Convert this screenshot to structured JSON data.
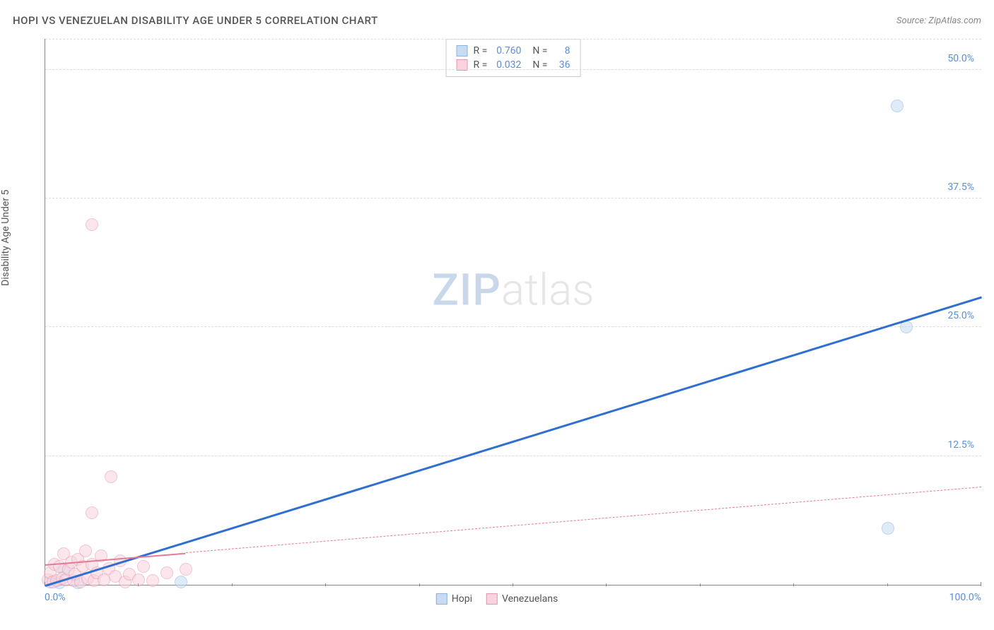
{
  "header": {
    "title": "HOPI VS VENEZUELAN DISABILITY AGE UNDER 5 CORRELATION CHART",
    "source": "Source: ZipAtlas.com"
  },
  "ylabel": "Disability Age Under 5",
  "watermark": {
    "zip": "ZIP",
    "atlas": "atlas"
  },
  "colors": {
    "series1_fill": "#c7dbf3",
    "series1_stroke": "#8ab2e2",
    "series2_fill": "#f9d3de",
    "series2_stroke": "#e796ae",
    "trend1": "#2f6fd0",
    "trend2": "#e57a95",
    "tick_text": "#5b8fd6",
    "grid": "#dddddd",
    "axis": "#888888"
  },
  "chart": {
    "type": "scatter",
    "xlim": [
      0,
      100
    ],
    "ylim": [
      0,
      53
    ],
    "yticks": [
      {
        "v": 12.5,
        "label": "12.5%"
      },
      {
        "v": 25.0,
        "label": "25.0%"
      },
      {
        "v": 37.5,
        "label": "37.5%"
      },
      {
        "v": 50.0,
        "label": "50.0%"
      }
    ],
    "xticks_labeled": [
      {
        "v": 0,
        "label": "0.0%",
        "align": "left"
      },
      {
        "v": 100,
        "label": "100.0%",
        "align": "right"
      }
    ],
    "xticks_minor": [
      10,
      20,
      30,
      40,
      50,
      60,
      70,
      80,
      90
    ],
    "xticks_major": [
      0,
      50,
      100
    ],
    "marker_radius": 9,
    "marker_opacity": 0.55,
    "series": [
      {
        "name": "Hopi",
        "color_key": "series1",
        "points": [
          {
            "x": 0.5,
            "y": 0.3
          },
          {
            "x": 1.5,
            "y": 0.2
          },
          {
            "x": 2.0,
            "y": 1.5
          },
          {
            "x": 3.5,
            "y": 0.2
          },
          {
            "x": 14.5,
            "y": 0.3
          },
          {
            "x": 90.0,
            "y": 5.5
          },
          {
            "x": 92.0,
            "y": 25.0
          },
          {
            "x": 91.0,
            "y": 46.5
          }
        ],
        "trend": {
          "x1": 0,
          "y1": 0,
          "x2": 100,
          "y2": 28.0,
          "dashed": false,
          "width": 2.5
        }
      },
      {
        "name": "Venezuelans",
        "color_key": "series2",
        "points": [
          {
            "x": 0.3,
            "y": 0.5
          },
          {
            "x": 0.5,
            "y": 1.2
          },
          {
            "x": 0.8,
            "y": 0.3
          },
          {
            "x": 1.0,
            "y": 2.0
          },
          {
            "x": 1.2,
            "y": 0.4
          },
          {
            "x": 1.5,
            "y": 1.8
          },
          {
            "x": 1.8,
            "y": 0.6
          },
          {
            "x": 2.0,
            "y": 3.0
          },
          {
            "x": 2.2,
            "y": 0.5
          },
          {
            "x": 2.5,
            "y": 1.5
          },
          {
            "x": 2.8,
            "y": 2.2
          },
          {
            "x": 3.0,
            "y": 0.4
          },
          {
            "x": 3.2,
            "y": 1.0
          },
          {
            "x": 3.5,
            "y": 2.5
          },
          {
            "x": 3.8,
            "y": 0.3
          },
          {
            "x": 4.0,
            "y": 1.8
          },
          {
            "x": 4.3,
            "y": 3.3
          },
          {
            "x": 4.5,
            "y": 0.6
          },
          {
            "x": 5.0,
            "y": 2.0
          },
          {
            "x": 5.2,
            "y": 0.4
          },
          {
            "x": 5.5,
            "y": 1.2
          },
          {
            "x": 6.0,
            "y": 2.8
          },
          {
            "x": 6.3,
            "y": 0.5
          },
          {
            "x": 6.8,
            "y": 1.6
          },
          {
            "x": 5.0,
            "y": 7.0
          },
          {
            "x": 7.5,
            "y": 0.8
          },
          {
            "x": 8.0,
            "y": 2.3
          },
          {
            "x": 8.5,
            "y": 0.3
          },
          {
            "x": 9.0,
            "y": 1.0
          },
          {
            "x": 7.0,
            "y": 10.5
          },
          {
            "x": 10.0,
            "y": 0.5
          },
          {
            "x": 10.5,
            "y": 1.8
          },
          {
            "x": 11.5,
            "y": 0.4
          },
          {
            "x": 13.0,
            "y": 1.2
          },
          {
            "x": 15.0,
            "y": 1.5
          },
          {
            "x": 5.0,
            "y": 35.0
          }
        ],
        "trend": {
          "x1": 0,
          "y1": 2.0,
          "x2": 100,
          "y2": 9.5,
          "dashed_from": 15,
          "width": 1.5
        }
      }
    ]
  },
  "stats_box": {
    "rows": [
      {
        "swatch": "series1",
        "r_label": "R =",
        "r": "0.760",
        "n_label": "N =",
        "n": "8"
      },
      {
        "swatch": "series2",
        "r_label": "R =",
        "r": "0.032",
        "n_label": "N =",
        "n": "36"
      }
    ]
  },
  "bottom_legend": {
    "items": [
      {
        "swatch": "series1",
        "label": "Hopi"
      },
      {
        "swatch": "series2",
        "label": "Venezuelans"
      }
    ]
  }
}
